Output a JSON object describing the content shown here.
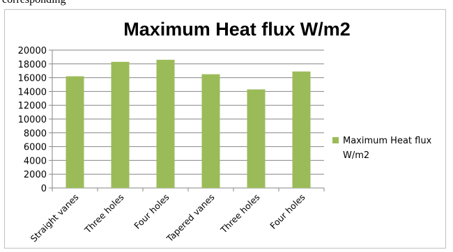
{
  "top_fragment": "corresponding",
  "chart_data": {
    "type": "bar",
    "title": "Maximum Heat flux W/m2",
    "xlabel": "",
    "ylabel": "",
    "categories": [
      "Straight vanes",
      "Three holes",
      "Four holes",
      "Tapered vanes",
      "Three holes",
      "Four holes"
    ],
    "series": [
      {
        "name": "Maximum Heat flux W/m2",
        "values": [
          16200,
          18300,
          18600,
          16500,
          14300,
          16900
        ],
        "color": "#9bbb59"
      }
    ],
    "ylim": [
      0,
      20000
    ],
    "yticks": [
      0,
      2000,
      4000,
      6000,
      8000,
      10000,
      12000,
      14000,
      16000,
      18000,
      20000
    ],
    "grid": true,
    "legend_position": "right"
  }
}
